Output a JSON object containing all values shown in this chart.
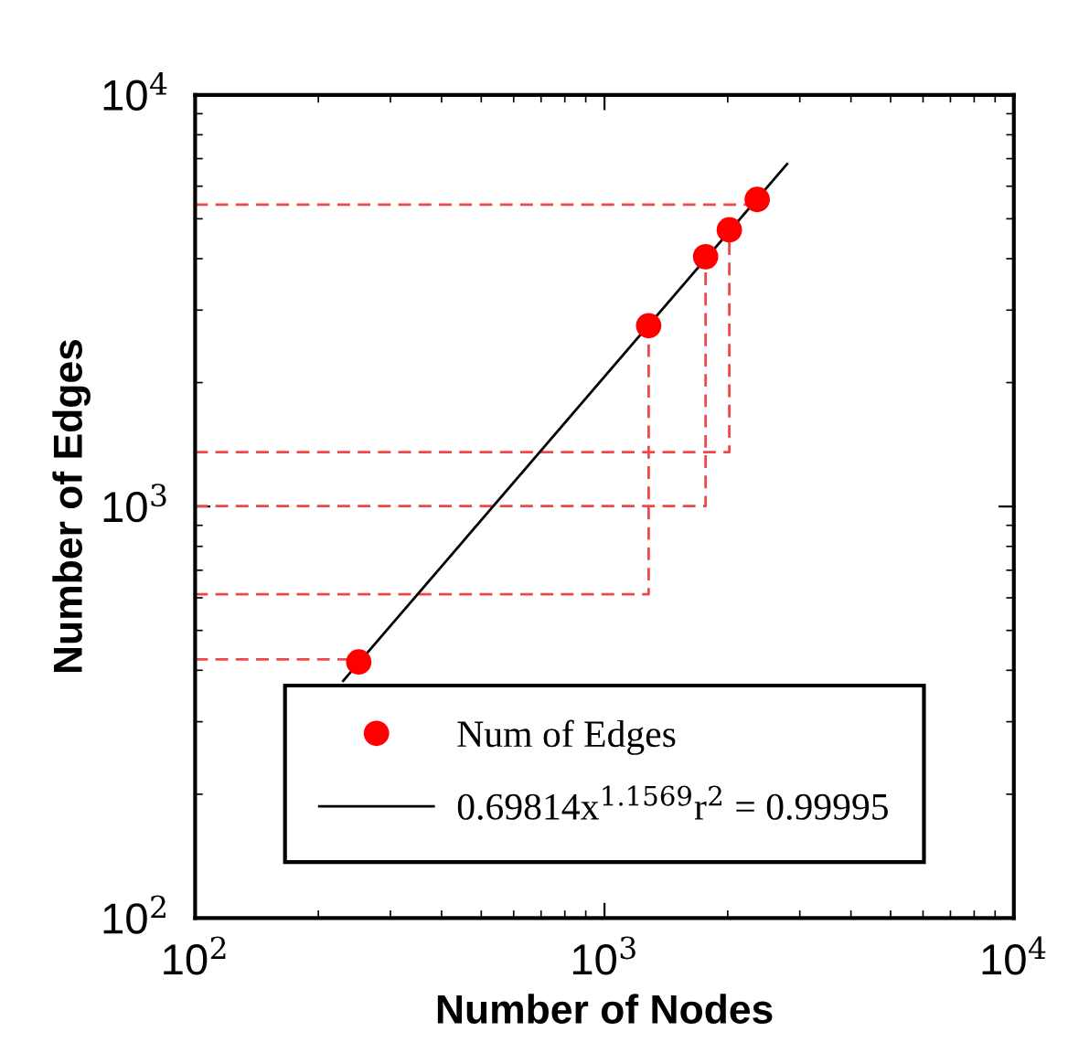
{
  "chart_data": {
    "type": "scatter",
    "xlabel": "Number of Nodes",
    "ylabel": "Number of Edges",
    "log": "xy",
    "xlim": [
      100,
      10000
    ],
    "ylim": [
      100,
      10000
    ],
    "xticks": [
      {
        "value": 100,
        "label": "10$^{2}$"
      },
      {
        "value": 1000,
        "label": "10$^{3}$"
      },
      {
        "value": 10000,
        "label": "10$^{4}$"
      }
    ],
    "yticks": [
      {
        "value": 100,
        "label": "10$^{2}$"
      },
      {
        "value": 1000,
        "label": "10$^{3}$"
      },
      {
        "value": 10000,
        "label": "10$^{4}$"
      }
    ],
    "grid": false,
    "legend": "bottom",
    "series": [
      {
        "name": "Num of Edges",
        "marker": "circle",
        "color": "#ff0000",
        "x": [
          251,
          1282,
          1766,
          2018,
          2361
        ],
        "values": [
          419,
          2750,
          4044,
          4700,
          5570
        ]
      },
      {
        "name": "0.69814x$^{1.1569}$r$^{2}$ = 0.99995",
        "type": "line",
        "marker": "none",
        "line_style": "solid",
        "color": "#000000",
        "x": [
          230,
          2793
        ],
        "values": [
          377,
          6790
        ]
      },
      {
        "type": "line",
        "marker": "none",
        "line_style": "dashed",
        "color": "#f04848",
        "x": [
          100,
          251,
          251
        ],
        "values": [
          425,
          425,
          419
        ]
      },
      {
        "type": "line",
        "marker": "none",
        "line_style": "dashed",
        "color": "#f04848",
        "x": [
          100,
          1282,
          1282
        ],
        "values": [
          612,
          612,
          2750
        ]
      },
      {
        "type": "line",
        "marker": "none",
        "line_style": "dashed",
        "color": "#f04848",
        "x": [
          100,
          1766,
          1766
        ],
        "values": [
          1002,
          1002,
          4044
        ]
      },
      {
        "type": "line",
        "marker": "none",
        "line_style": "dashed",
        "color": "#f04848",
        "x": [
          100,
          2018,
          2018
        ],
        "values": [
          1355,
          1355,
          4700
        ]
      },
      {
        "type": "line",
        "marker": "none",
        "line_style": "dashed",
        "color": "#f04848",
        "x": [
          100,
          2361,
          2361
        ],
        "values": [
          5410,
          5410,
          5570
        ]
      }
    ]
  }
}
